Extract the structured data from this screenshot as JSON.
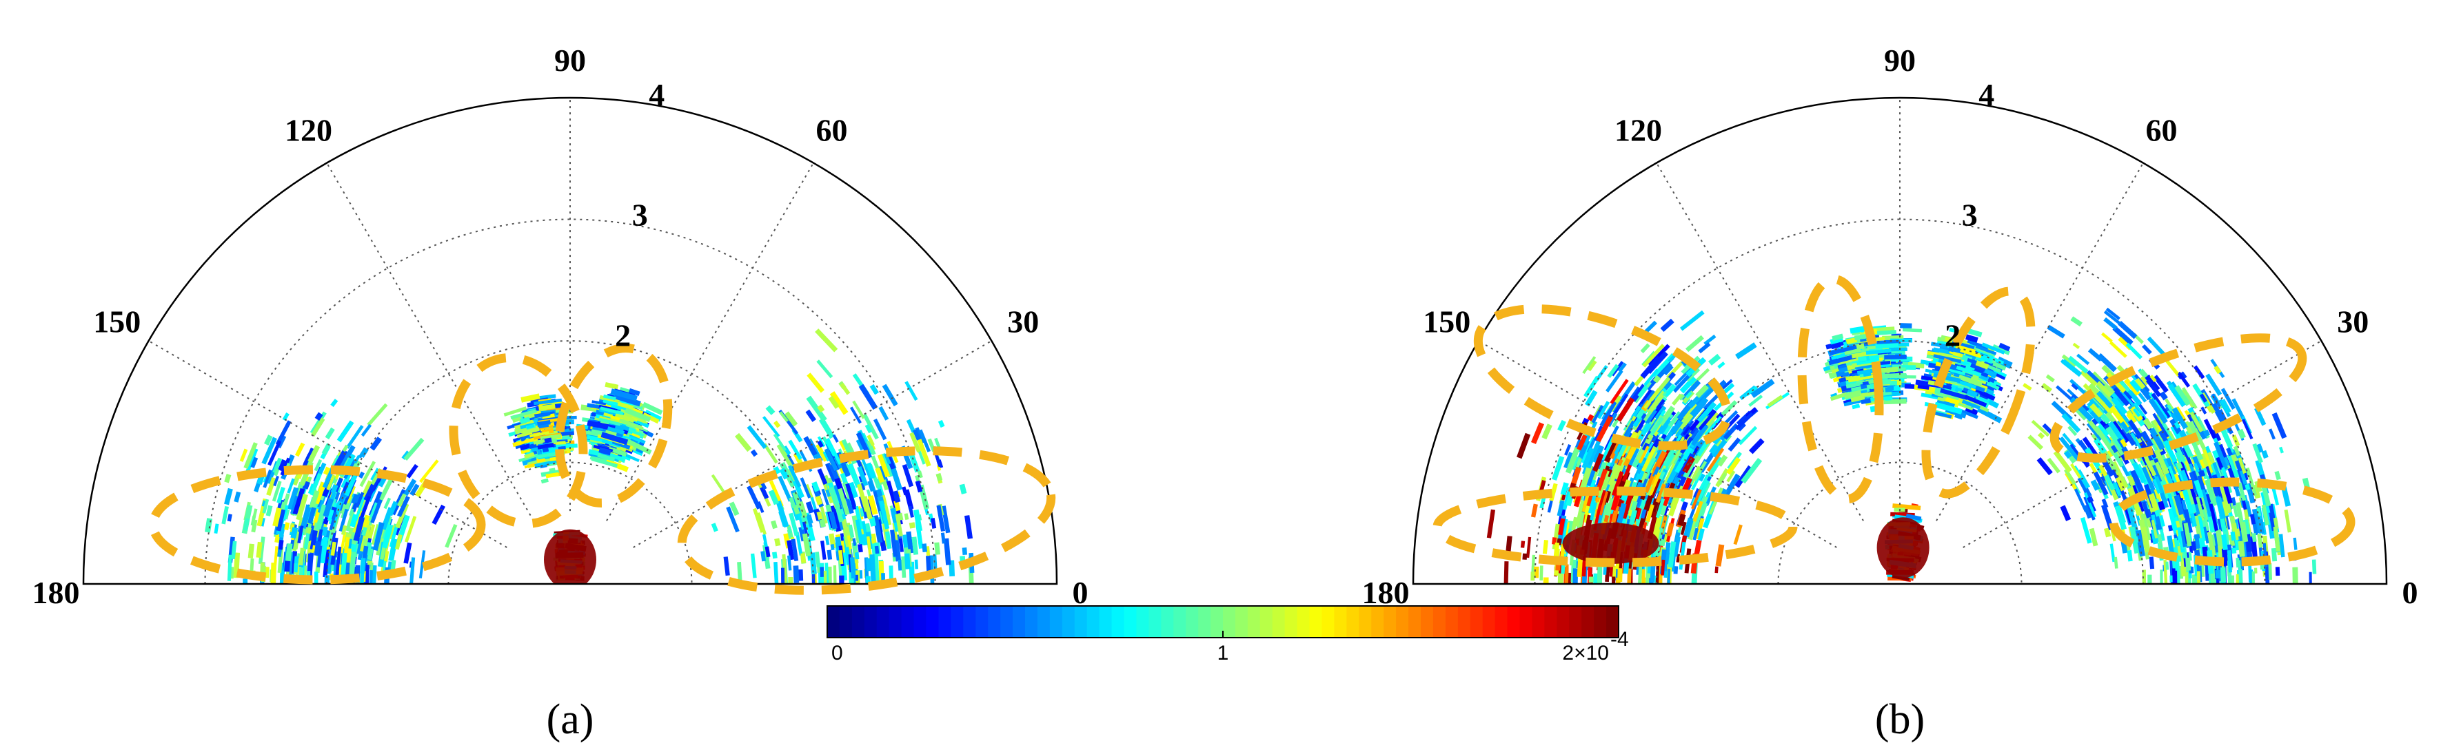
{
  "chart_data": [
    {
      "type": "polar-heatmap",
      "panel_label": "(a)",
      "angular_ticks": [
        "0",
        "30",
        "60",
        "90",
        "120",
        "150",
        "180"
      ],
      "radial_ticks": [
        "2",
        "3",
        "4"
      ],
      "radial_range": [
        0,
        4
      ],
      "angular_range_deg": [
        0,
        180
      ],
      "grid": true,
      "lobes": [
        {
          "angle_deg": 168,
          "r": 2.1,
          "spread": 0.55,
          "intensity": 0.55
        },
        {
          "angle_deg": 100,
          "r": 1.25,
          "spread": 0.18,
          "intensity": 0.6
        },
        {
          "angle_deg": 74,
          "r": 1.35,
          "spread": 0.18,
          "intensity": 0.55
        },
        {
          "angle_deg": 12,
          "r": 2.4,
          "spread": 0.6,
          "intensity": 0.55
        },
        {
          "angle_deg": 90,
          "r": 0.2,
          "spread": 0.15,
          "intensity": 1.0
        }
      ]
    },
    {
      "type": "polar-heatmap",
      "panel_label": "(b)",
      "angular_ticks": [
        "0",
        "30",
        "60",
        "90",
        "120",
        "150",
        "180"
      ],
      "radial_ticks": [
        "2",
        "3",
        "4"
      ],
      "radial_range": [
        0,
        4
      ],
      "angular_range_deg": [
        0,
        180
      ],
      "grid": true,
      "lobes": [
        {
          "angle_deg": 150,
          "r": 2.3,
          "spread": 0.45,
          "intensity": 0.5
        },
        {
          "angle_deg": 172,
          "r": 2.4,
          "spread": 0.5,
          "intensity": 0.95
        },
        {
          "angle_deg": 98,
          "r": 1.8,
          "spread": 0.2,
          "intensity": 0.55
        },
        {
          "angle_deg": 73,
          "r": 1.8,
          "spread": 0.2,
          "intensity": 0.55
        },
        {
          "angle_deg": 30,
          "r": 2.4,
          "spread": 0.5,
          "intensity": 0.55
        },
        {
          "angle_deg": 8,
          "r": 2.6,
          "spread": 0.5,
          "intensity": 0.5
        },
        {
          "angle_deg": 85,
          "r": 0.3,
          "spread": 0.2,
          "intensity": 1.0
        }
      ]
    }
  ],
  "colorbar": {
    "range": [
      0,
      2
    ],
    "tick_labels": [
      "0",
      "1",
      "2×10"
    ],
    "exponent_label": "-4",
    "colormap": "jet"
  },
  "colors": {
    "ellipse": "#f5b21b",
    "grid": "#555555",
    "frame": "#000000"
  }
}
